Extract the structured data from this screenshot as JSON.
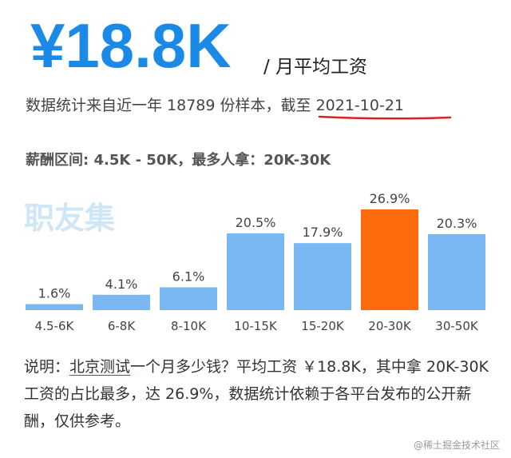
{
  "header": {
    "amount": "¥18.8K",
    "unit_label": "/ 月平均工资"
  },
  "sample_info": {
    "text": "数据统计来自近一年 18789 份样本，",
    "date_text": "截至 2021-10-21"
  },
  "range_info": {
    "text": "薪酬区间: 4.5K - 50K，最多人拿：20K-30K"
  },
  "watermark": {
    "brand": "职友集",
    "corner": "@稀土掘金技术社区"
  },
  "note": {
    "prefix": "说明：",
    "city_job": "北京测试",
    "rest": "一个月多少钱？平均工资 ￥18.8K，其中拿 20K-30K 工资的占比最多，达 26.9%，数据统计依赖于各平台发布的公开薪酬，仅供参考。"
  },
  "colors": {
    "normal_bar": "#79b8f3",
    "highlight_bar": "#fd6a0b",
    "headline": "#1a8ae6",
    "underline": "#e02020"
  },
  "chart_data": {
    "type": "bar",
    "categories": [
      "4.5-6K",
      "6-8K",
      "8-10K",
      "10-15K",
      "15-20K",
      "20-30K",
      "30-50K"
    ],
    "values": [
      1.6,
      4.1,
      6.1,
      20.5,
      17.9,
      26.9,
      20.3
    ],
    "value_labels": [
      "1.6%",
      "4.1%",
      "6.1%",
      "20.5%",
      "17.9%",
      "26.9%",
      "20.3%"
    ],
    "highlight_index": 5,
    "ylim": [
      0,
      26.9
    ],
    "grid": false,
    "title": "",
    "xlabel": "",
    "ylabel": ""
  }
}
